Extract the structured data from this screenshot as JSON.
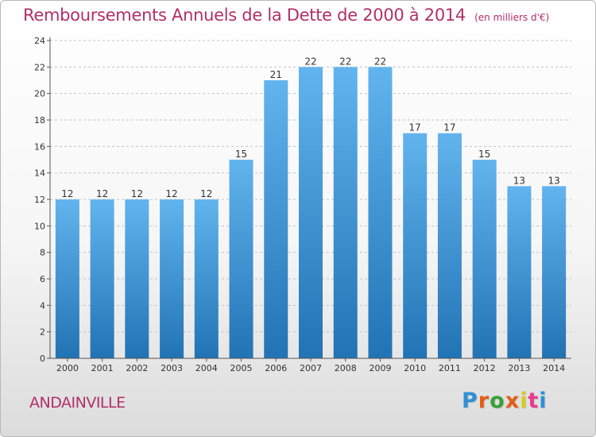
{
  "header": {
    "title": "Remboursements Annuels de la Dette de 2000 à 2014",
    "subtitle": "(en milliers d'€)"
  },
  "commune": "ANDAINVILLE",
  "logo": {
    "text": "Proxiti",
    "colors": [
      "#2f8fd6",
      "#e35e14",
      "#3aa037",
      "#e35e14",
      "#d8cc1e",
      "#e83a8c",
      "#2f8fd6"
    ]
  },
  "colors": {
    "bar_top": "#62b4ee",
    "bar_bottom": "#2173b4",
    "title": "#b03068",
    "grid": "#c4c4c4"
  },
  "chart_data": {
    "type": "bar",
    "title": "Remboursements Annuels de la Dette de 2000 à 2014",
    "subtitle": "(en milliers d'€)",
    "xlabel": "",
    "ylabel": "",
    "ylim": [
      0,
      24
    ],
    "y_ticks": [
      0,
      2,
      4,
      6,
      8,
      10,
      12,
      14,
      16,
      18,
      20,
      22,
      24
    ],
    "grid": true,
    "categories": [
      "2000",
      "2001",
      "2002",
      "2003",
      "2004",
      "2005",
      "2006",
      "2007",
      "2008",
      "2009",
      "2010",
      "2011",
      "2012",
      "2013",
      "2014"
    ],
    "values": [
      12,
      12,
      12,
      12,
      12,
      15,
      21,
      22,
      22,
      22,
      17,
      17,
      15,
      13,
      13
    ]
  }
}
